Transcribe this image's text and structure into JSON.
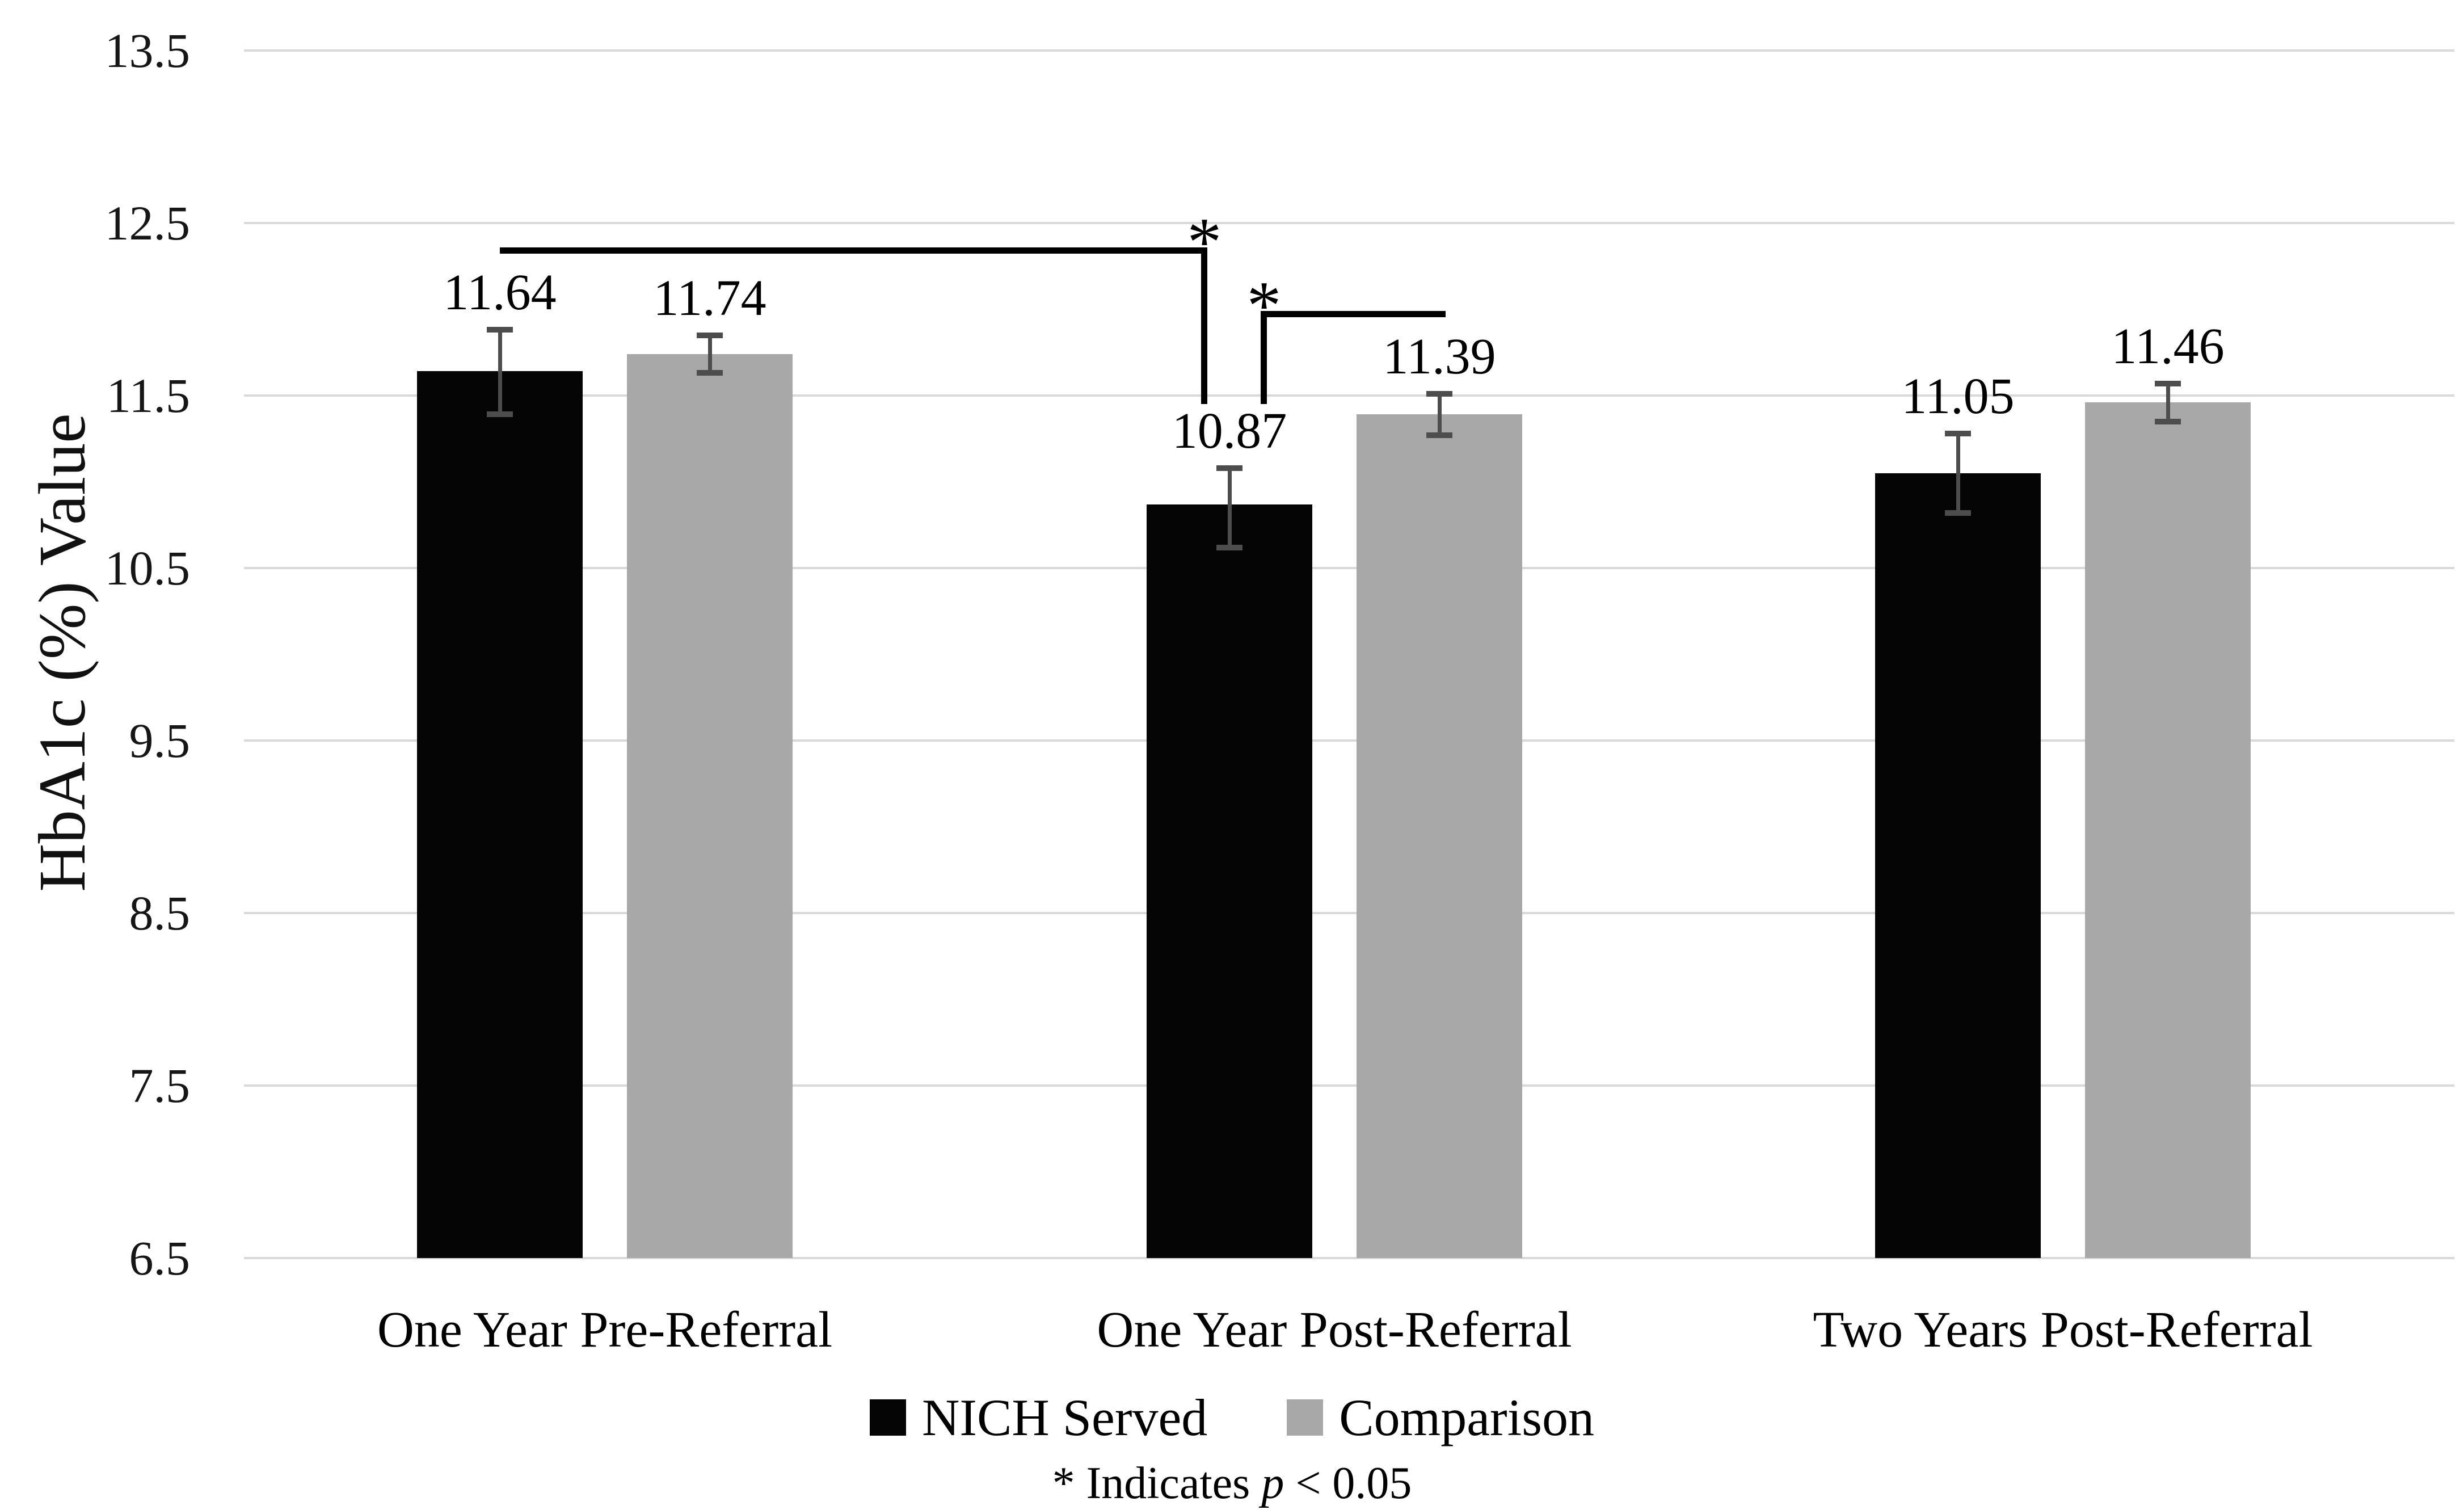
{
  "chart_data": {
    "type": "bar",
    "title": "",
    "ylabel": "HbA1c (%) Value",
    "xlabel": "",
    "categories": [
      "One Year Pre-Referral",
      "One Year Post-Referral",
      "Two Years Post-Referral"
    ],
    "series": [
      {
        "name": "NICH Served",
        "color": "#050505",
        "values": [
          11.64,
          10.87,
          11.05
        ],
        "labels": [
          "11.64",
          "10.87",
          "11.05"
        ],
        "error_high": [
          11.88,
          11.08,
          11.28
        ],
        "error_low": [
          11.39,
          10.62,
          10.82
        ]
      },
      {
        "name": "Comparison",
        "color": "#a8a8a8",
        "values": [
          11.74,
          11.39,
          11.46
        ],
        "labels": [
          "11.74",
          "11.39",
          "11.46"
        ],
        "error_high": [
          11.85,
          11.51,
          11.57
        ],
        "error_low": [
          11.63,
          11.27,
          11.35
        ]
      }
    ],
    "y_axis": {
      "min": 6.5,
      "max": 13.5,
      "step": 1,
      "tick_labels": [
        "13.5",
        "12.5",
        "11.5",
        "10.5",
        "9.5",
        "8.5",
        "7.5",
        "6.5"
      ]
    },
    "grid": "horizontal",
    "legend_position": "bottom-center",
    "gridline_color": "#d9d9d9",
    "error_bar_color": "#4d4d4d",
    "significance_brackets": [
      {
        "star": "*",
        "y_value": 12.36,
        "drop_to_value": 11.45,
        "from": {
          "group": 0,
          "series": 0,
          "frac": 0.5
        },
        "to": {
          "group": 1,
          "series": 0,
          "frac": 0.33
        },
        "drop_at": "to",
        "star_at": "to"
      },
      {
        "star": "*",
        "y_value": 11.99,
        "drop_to_value": 11.45,
        "from": {
          "group": 1,
          "series": 0,
          "frac": 0.69
        },
        "to": {
          "group": 1,
          "series": 1,
          "frac": 0.5
        },
        "drop_at": "from",
        "star_at": "from"
      }
    ],
    "footnote": {
      "prefix": "* Indicates ",
      "p": "p",
      "suffix": " < 0.05"
    }
  }
}
